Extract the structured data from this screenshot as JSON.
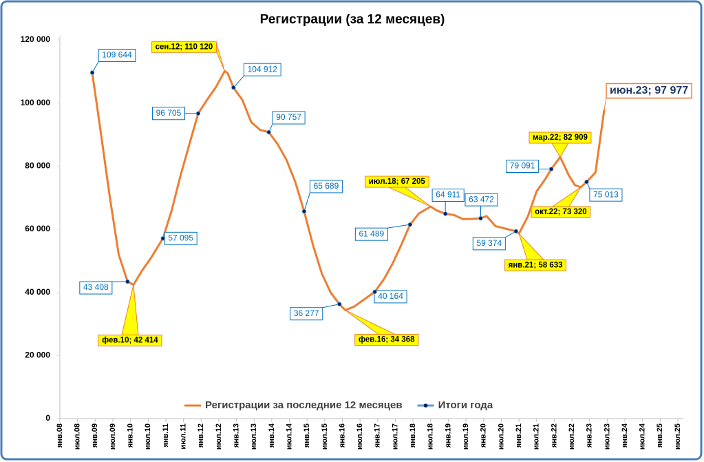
{
  "chart_data": {
    "type": "line",
    "title": "Регистрации (за 12 месяцев)",
    "xlim": [
      "2008-01",
      "2025-07"
    ],
    "xticks": [
      {
        "value": "2008-01",
        "label": "янв.08"
      },
      {
        "value": "2008-07",
        "label": "июл.08"
      },
      {
        "value": "2009-01",
        "label": "янв.09"
      },
      {
        "value": "2009-07",
        "label": "июл.09"
      },
      {
        "value": "2010-01",
        "label": "янв.10"
      },
      {
        "value": "2010-07",
        "label": "июл.10"
      },
      {
        "value": "2011-01",
        "label": "янв.11"
      },
      {
        "value": "2011-07",
        "label": "июл.11"
      },
      {
        "value": "2012-01",
        "label": "янв.12"
      },
      {
        "value": "2012-07",
        "label": "июл.12"
      },
      {
        "value": "2013-01",
        "label": "янв.13"
      },
      {
        "value": "2013-07",
        "label": "июл.13"
      },
      {
        "value": "2014-01",
        "label": "янв.14"
      },
      {
        "value": "2014-07",
        "label": "июл.14"
      },
      {
        "value": "2015-01",
        "label": "янв.15"
      },
      {
        "value": "2015-07",
        "label": "июл.15"
      },
      {
        "value": "2016-01",
        "label": "янв.16"
      },
      {
        "value": "2016-07",
        "label": "июл.16"
      },
      {
        "value": "2017-01",
        "label": "янв.17"
      },
      {
        "value": "2017-07",
        "label": "июл.17"
      },
      {
        "value": "2018-01",
        "label": "янв.18"
      },
      {
        "value": "2018-07",
        "label": "июл.18"
      },
      {
        "value": "2019-01",
        "label": "янв.19"
      },
      {
        "value": "2019-07",
        "label": "июл.19"
      },
      {
        "value": "2020-01",
        "label": "янв.20"
      },
      {
        "value": "2020-07",
        "label": "июл.20"
      },
      {
        "value": "2021-01",
        "label": "янв.21"
      },
      {
        "value": "2021-07",
        "label": "июл.21"
      },
      {
        "value": "2022-01",
        "label": "янв.22"
      },
      {
        "value": "2022-07",
        "label": "июл.22"
      },
      {
        "value": "2023-01",
        "label": "янв.23"
      },
      {
        "value": "2023-07",
        "label": "июл.23"
      },
      {
        "value": "2024-01",
        "label": "янв.24"
      },
      {
        "value": "2024-07",
        "label": "июл.24"
      },
      {
        "value": "2025-01",
        "label": "янв.25"
      },
      {
        "value": "2025-07",
        "label": "июл.25"
      }
    ],
    "ylim": [
      0,
      120000
    ],
    "yticks": [
      0,
      {
        "value": 20000,
        "label": "20 000"
      },
      {
        "value": 40000,
        "label": "40 000"
      },
      {
        "value": 60000,
        "label": "60 000"
      },
      {
        "value": 80000,
        "label": "80 000"
      },
      {
        "value": 100000,
        "label": "100 000"
      },
      {
        "value": 120000,
        "label": "120 000"
      }
    ],
    "grid": false,
    "legend": "bottom",
    "series": [
      {
        "name": "Регистрации за последние 12 месяцев",
        "color": "#ed7d31",
        "x": [
          "2008-12",
          "2009-03",
          "2009-06",
          "2009-09",
          "2009-12",
          "2010-02",
          "2010-05",
          "2010-08",
          "2010-12",
          "2011-03",
          "2011-06",
          "2011-09",
          "2011-12",
          "2012-03",
          "2012-06",
          "2012-09",
          "2012-10",
          "2012-12",
          "2013-03",
          "2013-06",
          "2013-09",
          "2013-12",
          "2014-03",
          "2014-06",
          "2014-09",
          "2014-12",
          "2015-03",
          "2015-06",
          "2015-09",
          "2015-12",
          "2016-02",
          "2016-05",
          "2016-08",
          "2016-12",
          "2017-03",
          "2017-06",
          "2017-09",
          "2017-12",
          "2018-03",
          "2018-07",
          "2018-09",
          "2018-12",
          "2019-03",
          "2019-06",
          "2019-09",
          "2019-12",
          "2020-02",
          "2020-05",
          "2020-08",
          "2020-12",
          "2021-01",
          "2021-04",
          "2021-07",
          "2021-10",
          "2021-12",
          "2022-03",
          "2022-06",
          "2022-08",
          "2022-10",
          "2022-12",
          "2023-03",
          "2023-06"
        ],
        "values": [
          109644,
          90000,
          70000,
          52000,
          43408,
          42414,
          47000,
          51000,
          57095,
          66000,
          77000,
          87000,
          96705,
          101000,
          105000,
          110120,
          109500,
          104912,
          101000,
          94000,
          91500,
          90757,
          87000,
          82000,
          75000,
          65689,
          55000,
          46000,
          40000,
          36277,
          34368,
          35500,
          37500,
          40164,
          44000,
          49000,
          55000,
          61489,
          65000,
          67205,
          66000,
          64911,
          64500,
          63200,
          63300,
          63472,
          64200,
          61000,
          60300,
          59374,
          58633,
          64000,
          72000,
          76000,
          79091,
          82909,
          77000,
          74000,
          73320,
          75013,
          78000,
          97977
        ]
      },
      {
        "name": "Итоги года",
        "color": "#5b9bd5",
        "marker_color": "#002060",
        "line": false,
        "x": [
          "2008-12",
          "2009-12",
          "2010-12",
          "2011-12",
          "2012-12",
          "2013-12",
          "2014-12",
          "2015-12",
          "2016-12",
          "2017-12",
          "2018-12",
          "2019-12",
          "2020-12",
          "2021-12",
          "2022-12"
        ],
        "values": [
          109644,
          43408,
          57095,
          96705,
          104912,
          90757,
          65689,
          36277,
          40164,
          61489,
          64911,
          63472,
          59374,
          79091,
          75013
        ],
        "value_labels": [
          "109 644",
          "43 408",
          "57 095",
          "96 705",
          "104 912",
          "90 757",
          "65 689",
          "36 277",
          "40 164",
          "61 489",
          "64 911",
          "63 472",
          "59 374",
          "79 091",
          "75 013"
        ]
      }
    ],
    "annotations": [
      {
        "x": "2010-02",
        "y": 42414,
        "label": "фев.10; 42 414"
      },
      {
        "x": "2012-09",
        "y": 110120,
        "label": "сен.12; 110 120"
      },
      {
        "x": "2016-02",
        "y": 34368,
        "label": "фев.16; 34 368"
      },
      {
        "x": "2018-07",
        "y": 67205,
        "label": "июл.18; 67 205"
      },
      {
        "x": "2021-01",
        "y": 58633,
        "label": "янв.21; 58 633"
      },
      {
        "x": "2022-03",
        "y": 82909,
        "label": "мар.22; 82 909"
      },
      {
        "x": "2022-10",
        "y": 73320,
        "label": "окт.22; 73 320"
      },
      {
        "x": "2023-06",
        "y": 97977,
        "label": "июн.23; 97 977"
      }
    ]
  }
}
